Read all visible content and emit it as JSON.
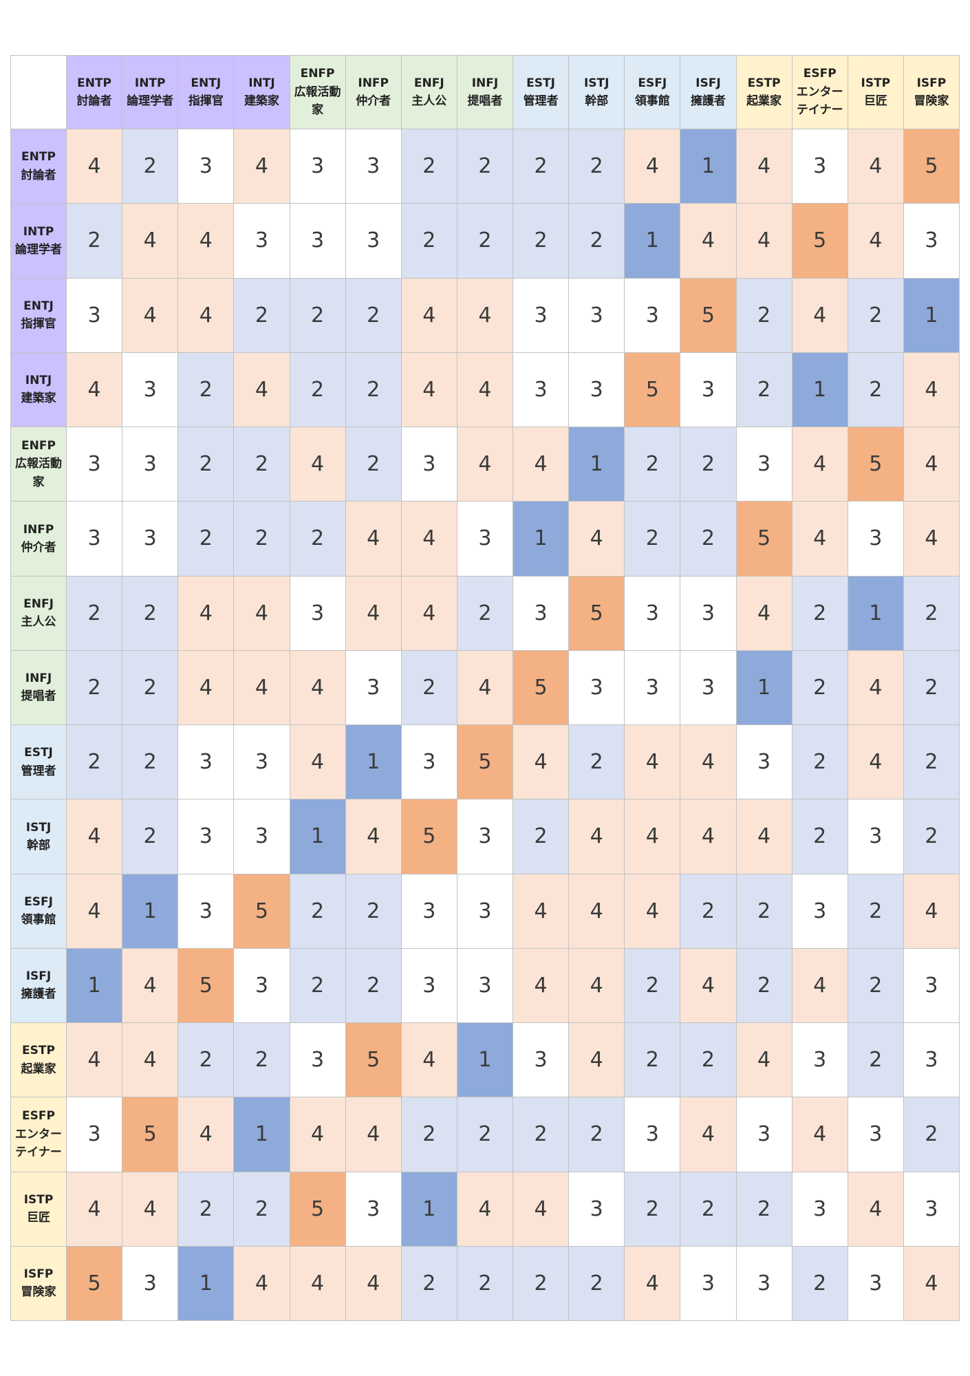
{
  "chart_data": {
    "type": "heatmap",
    "title": "",
    "types": [
      {
        "code": "ENTP",
        "role": "討論者",
        "group": "analyst"
      },
      {
        "code": "INTP",
        "role": "論理学者",
        "group": "analyst"
      },
      {
        "code": "ENTJ",
        "role": "指揮官",
        "group": "analyst"
      },
      {
        "code": "INTJ",
        "role": "建築家",
        "group": "analyst"
      },
      {
        "code": "ENFP",
        "role": "広報活動家",
        "group": "diplomat"
      },
      {
        "code": "INFP",
        "role": "仲介者",
        "group": "diplomat"
      },
      {
        "code": "ENFJ",
        "role": "主人公",
        "group": "diplomat"
      },
      {
        "code": "INFJ",
        "role": "提唱者",
        "group": "diplomat"
      },
      {
        "code": "ESTJ",
        "role": "管理者",
        "group": "sentinel"
      },
      {
        "code": "ISTJ",
        "role": "幹部",
        "group": "sentinel"
      },
      {
        "code": "ESFJ",
        "role": "領事館",
        "group": "sentinel"
      },
      {
        "code": "ISFJ",
        "role": "擁護者",
        "group": "sentinel"
      },
      {
        "code": "ESTP",
        "role": "起業家",
        "group": "explorer"
      },
      {
        "code": "ESFP",
        "role": "エンターテイナー",
        "group": "explorer"
      },
      {
        "code": "ISTP",
        "role": "巨匠",
        "group": "explorer"
      },
      {
        "code": "ISFP",
        "role": "冒険家",
        "group": "explorer"
      }
    ],
    "values": [
      [
        4,
        2,
        3,
        4,
        3,
        3,
        2,
        2,
        2,
        2,
        4,
        1,
        4,
        3,
        4,
        5
      ],
      [
        2,
        4,
        4,
        3,
        3,
        3,
        2,
        2,
        2,
        2,
        1,
        4,
        4,
        5,
        4,
        3
      ],
      [
        3,
        4,
        4,
        2,
        2,
        2,
        4,
        4,
        3,
        3,
        3,
        5,
        2,
        4,
        2,
        1
      ],
      [
        4,
        3,
        2,
        4,
        2,
        2,
        4,
        4,
        3,
        3,
        5,
        3,
        2,
        1,
        2,
        4
      ],
      [
        3,
        3,
        2,
        2,
        4,
        2,
        3,
        4,
        4,
        1,
        2,
        2,
        3,
        4,
        5,
        4
      ],
      [
        3,
        3,
        2,
        2,
        2,
        4,
        4,
        3,
        1,
        4,
        2,
        2,
        5,
        4,
        3,
        4
      ],
      [
        2,
        2,
        4,
        4,
        3,
        4,
        4,
        2,
        3,
        5,
        3,
        3,
        4,
        2,
        1,
        2
      ],
      [
        2,
        2,
        4,
        4,
        4,
        3,
        2,
        4,
        5,
        3,
        3,
        3,
        1,
        2,
        4,
        2
      ],
      [
        2,
        2,
        3,
        3,
        4,
        1,
        3,
        5,
        4,
        2,
        4,
        4,
        3,
        2,
        4,
        2
      ],
      [
        4,
        2,
        3,
        3,
        1,
        4,
        5,
        3,
        2,
        4,
        4,
        4,
        4,
        2,
        3,
        2
      ],
      [
        4,
        1,
        3,
        5,
        2,
        2,
        3,
        3,
        4,
        4,
        4,
        2,
        2,
        3,
        2,
        4
      ],
      [
        1,
        4,
        5,
        3,
        2,
        2,
        3,
        3,
        4,
        4,
        2,
        4,
        2,
        4,
        2,
        3
      ],
      [
        4,
        4,
        2,
        2,
        3,
        5,
        4,
        1,
        3,
        4,
        2,
        2,
        4,
        3,
        2,
        3
      ],
      [
        3,
        5,
        4,
        1,
        4,
        4,
        2,
        2,
        2,
        2,
        3,
        4,
        3,
        4,
        3,
        2
      ],
      [
        4,
        4,
        2,
        2,
        5,
        3,
        1,
        4,
        4,
        3,
        2,
        2,
        2,
        3,
        4,
        3
      ],
      [
        5,
        3,
        1,
        4,
        4,
        4,
        2,
        2,
        2,
        2,
        4,
        3,
        3,
        2,
        3,
        4
      ]
    ],
    "value_range": [
      1,
      5
    ],
    "value_colors": {
      "1": "#8eaadb",
      "2": "#d9e1f2",
      "3": "#ffffff",
      "4": "#fbe4d5",
      "5": "#f4b183"
    },
    "group_colors": {
      "analyst": "#ccc0ff",
      "diplomat": "#e2efda",
      "sentinel": "#ddebf7",
      "explorer": "#fff2cc"
    }
  }
}
